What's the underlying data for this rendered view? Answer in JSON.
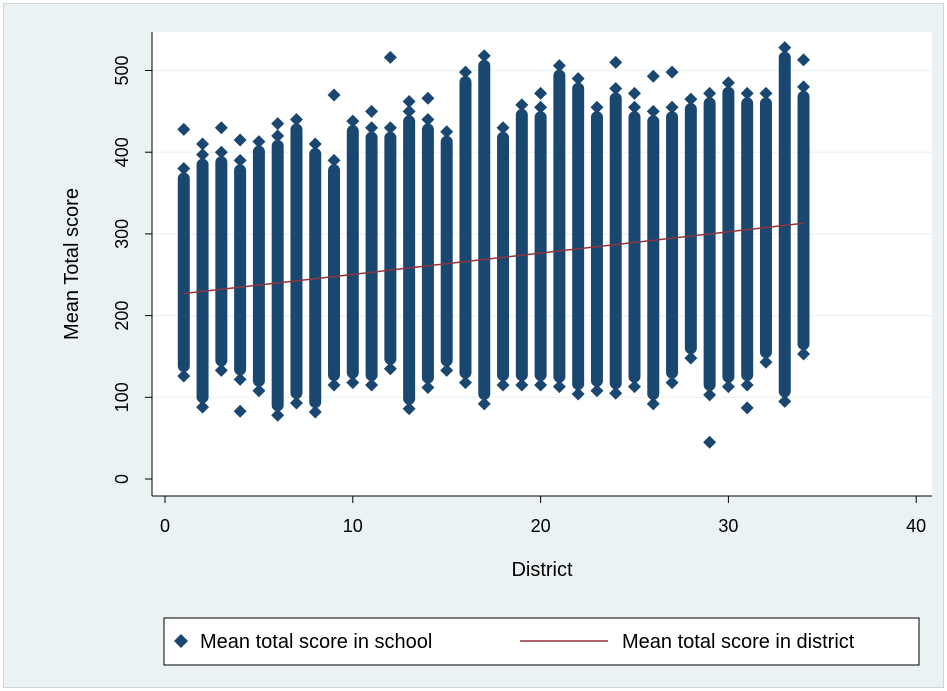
{
  "chart_data": {
    "type": "scatter",
    "title": "",
    "xlabel": "District",
    "ylabel": "Mean Total score",
    "xlim": [
      0,
      40
    ],
    "ylim": [
      0,
      520
    ],
    "xticks": [
      "0",
      "10",
      "20",
      "30",
      "40"
    ],
    "yticks": [
      "0",
      "100",
      "200",
      "300",
      "400",
      "500"
    ],
    "grid": "horizontal",
    "legend_position": "bottom",
    "colors": {
      "marker": "#1a476f",
      "line": "#90353b",
      "plot_bg": "#ffffff",
      "outer_bg": "#eaf2f3"
    },
    "series": [
      {
        "name": "Mean total score in school",
        "kind": "markers",
        "points": [
          {
            "district": 1,
            "min": 126,
            "max": 380,
            "outliers": [
              428
            ]
          },
          {
            "district": 2,
            "min": 88,
            "max": 397,
            "outliers": [
              410
            ]
          },
          {
            "district": 3,
            "min": 133,
            "max": 400,
            "outliers": [
              430
            ]
          },
          {
            "district": 4,
            "min": 122,
            "max": 390,
            "outliers": [
              83,
              415
            ]
          },
          {
            "district": 5,
            "min": 108,
            "max": 413,
            "outliers": []
          },
          {
            "district": 6,
            "min": 78,
            "max": 420,
            "outliers": [
              435
            ]
          },
          {
            "district": 7,
            "min": 93,
            "max": 440,
            "outliers": []
          },
          {
            "district": 8,
            "min": 82,
            "max": 410,
            "outliers": []
          },
          {
            "district": 9,
            "min": 115,
            "max": 390,
            "outliers": [
              470
            ]
          },
          {
            "district": 10,
            "min": 118,
            "max": 438,
            "outliers": []
          },
          {
            "district": 11,
            "min": 115,
            "max": 430,
            "outliers": [
              450
            ]
          },
          {
            "district": 12,
            "min": 135,
            "max": 430,
            "outliers": [
              516
            ]
          },
          {
            "district": 13,
            "min": 86,
            "max": 450,
            "outliers": [
              462
            ]
          },
          {
            "district": 14,
            "min": 112,
            "max": 440,
            "outliers": [
              466
            ]
          },
          {
            "district": 15,
            "min": 133,
            "max": 425,
            "outliers": []
          },
          {
            "district": 16,
            "min": 118,
            "max": 498,
            "outliers": []
          },
          {
            "district": 17,
            "min": 92,
            "max": 518,
            "outliers": []
          },
          {
            "district": 18,
            "min": 115,
            "max": 430,
            "outliers": []
          },
          {
            "district": 19,
            "min": 115,
            "max": 458,
            "outliers": []
          },
          {
            "district": 20,
            "min": 115,
            "max": 455,
            "outliers": [
              472
            ]
          },
          {
            "district": 21,
            "min": 113,
            "max": 506,
            "outliers": []
          },
          {
            "district": 22,
            "min": 104,
            "max": 490,
            "outliers": []
          },
          {
            "district": 23,
            "min": 108,
            "max": 455,
            "outliers": []
          },
          {
            "district": 24,
            "min": 105,
            "max": 478,
            "outliers": [
              510
            ]
          },
          {
            "district": 25,
            "min": 113,
            "max": 455,
            "outliers": [
              472
            ]
          },
          {
            "district": 26,
            "min": 92,
            "max": 450,
            "outliers": [
              493
            ]
          },
          {
            "district": 27,
            "min": 118,
            "max": 455,
            "outliers": [
              498
            ]
          },
          {
            "district": 28,
            "min": 148,
            "max": 465,
            "outliers": []
          },
          {
            "district": 29,
            "min": 103,
            "max": 472,
            "outliers": [
              45
            ]
          },
          {
            "district": 30,
            "min": 113,
            "max": 485,
            "outliers": []
          },
          {
            "district": 31,
            "min": 115,
            "max": 472,
            "outliers": [
              87
            ]
          },
          {
            "district": 32,
            "min": 143,
            "max": 472,
            "outliers": []
          },
          {
            "district": 33,
            "min": 95,
            "max": 528,
            "outliers": []
          },
          {
            "district": 34,
            "min": 153,
            "max": 480,
            "outliers": [
              513
            ]
          }
        ]
      },
      {
        "name": "Mean total score in district",
        "kind": "line",
        "x": [
          1,
          34
        ],
        "y": [
          227,
          313
        ]
      }
    ]
  }
}
